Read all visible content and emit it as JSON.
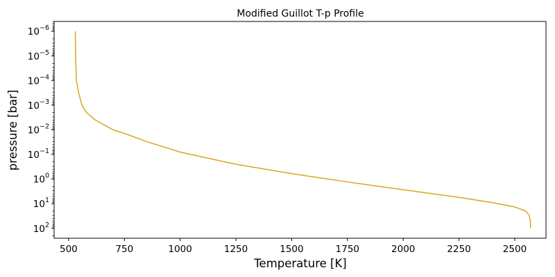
{
  "chart_data": {
    "type": "line",
    "title": "Modified Guillot T-p Profile",
    "xlabel": "Temperature [K]",
    "ylabel": "pressure [bar]",
    "xlim": [
      435,
      2640
    ],
    "ylim_log10": [
      -6.4,
      2.4
    ],
    "y_scale": "log",
    "y_inverted": true,
    "grid": false,
    "legend": "none",
    "line_color": "#DAA520",
    "x_ticks": [
      500,
      750,
      1000,
      1250,
      1500,
      1750,
      2000,
      2250,
      2500
    ],
    "x_tick_labels": [
      "500",
      "750",
      "1000",
      "1250",
      "1500",
      "1750",
      "2000",
      "2250",
      "2500"
    ],
    "y_tick_exponents": [
      -6,
      -5,
      -4,
      -3,
      -2,
      -1,
      0,
      1,
      2
    ],
    "y_tick_labels": [
      "10",
      "10",
      "10",
      "10",
      "10",
      "10",
      "10",
      "10",
      "10"
    ],
    "y_tick_label_exps": [
      "−6",
      "−5",
      "−4",
      "−3",
      "−2",
      "−1",
      "0",
      "1",
      "2"
    ],
    "series": [
      {
        "points": [
          {
            "x": 530,
            "y": 1e-06
          },
          {
            "x": 531,
            "y": 1e-05
          },
          {
            "x": 535,
            "y": 0.0001
          },
          {
            "x": 545,
            "y": 0.00032
          },
          {
            "x": 560,
            "y": 0.001
          },
          {
            "x": 580,
            "y": 0.002
          },
          {
            "x": 620,
            "y": 0.004
          },
          {
            "x": 700,
            "y": 0.01
          },
          {
            "x": 760,
            "y": 0.015
          },
          {
            "x": 850,
            "y": 0.03
          },
          {
            "x": 1000,
            "y": 0.08
          },
          {
            "x": 1250,
            "y": 0.25
          },
          {
            "x": 1500,
            "y": 0.6
          },
          {
            "x": 1750,
            "y": 1.3
          },
          {
            "x": 2000,
            "y": 2.7
          },
          {
            "x": 2250,
            "y": 5.5
          },
          {
            "x": 2400,
            "y": 9
          },
          {
            "x": 2500,
            "y": 13.5
          },
          {
            "x": 2550,
            "y": 20
          },
          {
            "x": 2565,
            "y": 30
          },
          {
            "x": 2570,
            "y": 50
          },
          {
            "x": 2571,
            "y": 100
          }
        ]
      }
    ]
  }
}
